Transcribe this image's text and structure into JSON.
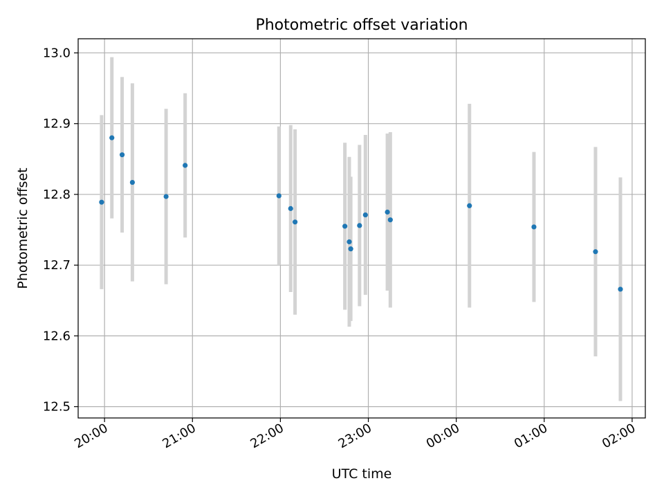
{
  "chart_data": {
    "type": "scatter",
    "title": "Photometric offset variation",
    "xlabel": "UTC time",
    "ylabel": "Photometric offset",
    "x_ticks": [
      "20:00",
      "21:00",
      "22:00",
      "23:00",
      "00:00",
      "01:00",
      "02:00"
    ],
    "x_tick_hours": [
      20,
      21,
      22,
      23,
      24,
      25,
      26
    ],
    "y_ticks": [
      "12.5",
      "12.6",
      "12.7",
      "12.8",
      "12.9",
      "13.0"
    ],
    "y_tick_values": [
      12.5,
      12.6,
      12.7,
      12.8,
      12.9,
      13.0
    ],
    "xlim": [
      19.7,
      26.15
    ],
    "ylim": [
      12.484,
      13.02
    ],
    "grid": true,
    "marker_color": "#1f77b4",
    "errorbar_color": "#d3d3d3",
    "points": [
      {
        "time": "19:58",
        "y": 12.789,
        "err": 0.123
      },
      {
        "time": "20:05",
        "y": 12.88,
        "err": 0.114
      },
      {
        "time": "20:12",
        "y": 12.856,
        "err": 0.11
      },
      {
        "time": "20:19",
        "y": 12.817,
        "err": 0.14
      },
      {
        "time": "20:42",
        "y": 12.797,
        "err": 0.124
      },
      {
        "time": "20:55",
        "y": 12.841,
        "err": 0.102
      },
      {
        "time": "21:59",
        "y": 12.798,
        "err": 0.098
      },
      {
        "time": "22:07",
        "y": 12.78,
        "err": 0.118
      },
      {
        "time": "22:10",
        "y": 12.761,
        "err": 0.131
      },
      {
        "time": "22:44",
        "y": 12.755,
        "err": 0.118
      },
      {
        "time": "22:47",
        "y": 12.733,
        "err": 0.12
      },
      {
        "time": "22:48",
        "y": 12.723,
        "err": 0.102
      },
      {
        "time": "22:54",
        "y": 12.756,
        "err": 0.114
      },
      {
        "time": "22:58",
        "y": 12.771,
        "err": 0.113
      },
      {
        "time": "23:13",
        "y": 12.775,
        "err": 0.111
      },
      {
        "time": "23:15",
        "y": 12.764,
        "err": 0.124
      },
      {
        "time": "00:09",
        "y": 12.784,
        "err": 0.144
      },
      {
        "time": "00:53",
        "y": 12.754,
        "err": 0.106
      },
      {
        "time": "01:35",
        "y": 12.719,
        "err": 0.148
      },
      {
        "time": "01:52",
        "y": 12.666,
        "err": 0.158
      }
    ]
  }
}
